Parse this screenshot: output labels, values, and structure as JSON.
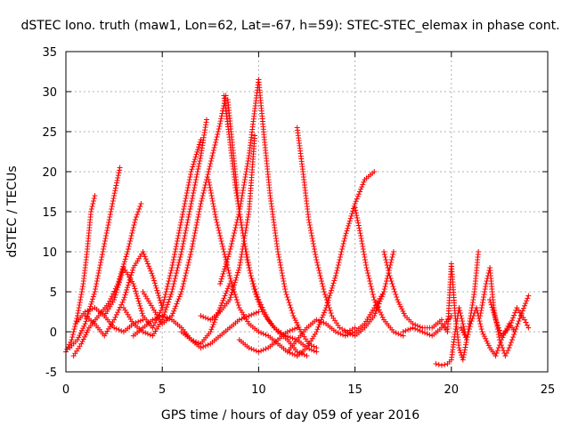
{
  "chart_data": {
    "type": "scatter",
    "title": "dSTEC Iono. truth (maw1, Lon=62, Lat=-67, h=59): STEC-STEC_elemax in phase cont.",
    "xlabel": "GPS time / hours of day 059 of year 2016",
    "ylabel": "dSTEC  / TECUs",
    "xlim": [
      0,
      25
    ],
    "ylim": [
      -5,
      35
    ],
    "x_ticks": [
      0,
      5,
      10,
      15,
      20,
      25
    ],
    "y_ticks": [
      -5,
      0,
      5,
      10,
      15,
      20,
      25,
      30,
      35
    ],
    "x_tick_labels": [
      "0",
      "5",
      "10",
      "15",
      "20",
      "25"
    ],
    "y_tick_labels": [
      "-5",
      "0",
      "5",
      "10",
      "15",
      "20",
      "25",
      "30",
      "35"
    ],
    "grid": true,
    "marker": "+",
    "color": "#ff0000",
    "series": [
      {
        "x": [
          0.0,
          0.3,
          0.6,
          0.9,
          1.1,
          1.3,
          1.5
        ],
        "y": [
          -2.5,
          -1.0,
          2.0,
          6.0,
          10.0,
          15.0,
          17.0
        ]
      },
      {
        "x": [
          0.2,
          0.6,
          1.0,
          1.5,
          2.0,
          2.5,
          2.8
        ],
        "y": [
          -2.0,
          -1.0,
          1.0,
          5.0,
          11.0,
          17.0,
          20.5
        ]
      },
      {
        "x": [
          0.4,
          0.8,
          1.2,
          1.7,
          2.2,
          2.7,
          3.2,
          3.6,
          3.9
        ],
        "y": [
          -3.0,
          -1.5,
          0.5,
          2.0,
          3.5,
          6.0,
          10.0,
          14.0,
          16.0
        ]
      },
      {
        "x": [
          0.5,
          1.0,
          1.5,
          2.0,
          2.5,
          3.0,
          3.5,
          4.0
        ],
        "y": [
          1.0,
          2.5,
          3.0,
          2.0,
          0.5,
          0.0,
          1.0,
          1.5
        ]
      },
      {
        "x": [
          1.0,
          1.5,
          2.0,
          2.5,
          3.0,
          3.5,
          4.0,
          4.5,
          5.0
        ],
        "y": [
          2.0,
          1.0,
          -0.5,
          1.5,
          4.0,
          8.0,
          10.0,
          7.0,
          3.0
        ]
      },
      {
        "x": [
          2.0,
          2.5,
          3.0,
          3.5,
          4.0,
          4.5,
          5.0,
          5.5,
          6.0,
          6.5,
          7.0
        ],
        "y": [
          2.0,
          4.0,
          8.0,
          6.0,
          2.0,
          0.5,
          3.0,
          8.0,
          14.0,
          20.0,
          24.0
        ]
      },
      {
        "x": [
          3.0,
          3.5,
          4.0,
          4.5,
          5.0,
          5.5,
          6.0,
          6.5,
          7.0,
          7.3
        ],
        "y": [
          3.0,
          1.0,
          0.0,
          -0.5,
          1.5,
          5.0,
          10.0,
          16.0,
          22.0,
          26.5
        ]
      },
      {
        "x": [
          3.5,
          4.0,
          4.5,
          5.0,
          5.5,
          6.0,
          6.5,
          7.0,
          7.5,
          8.0,
          8.5
        ],
        "y": [
          -0.5,
          0.5,
          1.5,
          2.0,
          1.5,
          0.5,
          -1.0,
          -1.5,
          0.0,
          3.0,
          6.0
        ]
      },
      {
        "x": [
          4.0,
          4.5,
          5.0,
          5.5,
          6.0,
          6.5,
          7.0,
          7.5,
          8.0,
          8.3
        ],
        "y": [
          5.0,
          3.0,
          1.0,
          2.0,
          5.0,
          10.0,
          16.0,
          21.0,
          26.0,
          29.5
        ]
      },
      {
        "x": [
          7.4,
          7.8,
          8.2,
          8.6,
          9.0,
          9.5,
          10.0,
          10.5,
          11.0,
          11.5,
          12.0
        ],
        "y": [
          19.0,
          14.0,
          10.0,
          6.0,
          3.0,
          1.0,
          0.0,
          -0.5,
          -1.5,
          -2.5,
          -3.0
        ]
      },
      {
        "x": [
          8.2,
          8.5,
          8.8,
          9.2,
          9.6,
          10.0,
          10.5,
          11.0,
          11.5,
          12.0,
          12.5
        ],
        "y": [
          29.5,
          24.0,
          18.0,
          12.0,
          7.0,
          4.0,
          1.5,
          0.0,
          -1.0,
          -2.5,
          -3.0
        ]
      },
      {
        "x": [
          8.4,
          8.7,
          9.0,
          9.4,
          9.8,
          10.2,
          10.8,
          11.4,
          12.0,
          12.5,
          13.0
        ],
        "y": [
          29.0,
          22.0,
          15.0,
          9.0,
          5.0,
          2.5,
          0.5,
          -0.5,
          -1.0,
          -2.0,
          -2.5
        ]
      },
      {
        "x": [
          6.0,
          6.5,
          7.0,
          7.5,
          8.0,
          8.5,
          9.0,
          9.5,
          10.0
        ],
        "y": [
          0.0,
          -1.0,
          -2.0,
          -1.5,
          -0.5,
          0.5,
          1.5,
          2.0,
          2.5
        ]
      },
      {
        "x": [
          7.0,
          7.5,
          8.0,
          8.5,
          9.0,
          9.5,
          9.8
        ],
        "y": [
          2.0,
          1.5,
          2.5,
          4.0,
          8.0,
          15.0,
          24.5
        ]
      },
      {
        "x": [
          8.0,
          8.5,
          9.0,
          9.5,
          10.0
        ],
        "y": [
          6.0,
          10.0,
          15.0,
          22.0,
          31.5
        ]
      },
      {
        "x": [
          10.0,
          10.3,
          10.6,
          11.0,
          11.4,
          11.8,
          12.2,
          12.6,
          13.0
        ],
        "y": [
          31.5,
          24.0,
          17.0,
          10.0,
          5.0,
          2.0,
          0.0,
          -1.5,
          -2.0
        ]
      },
      {
        "x": [
          9.0,
          9.5,
          10.0,
          10.5,
          11.0,
          11.5,
          12.0
        ],
        "y": [
          -1.0,
          -2.0,
          -2.5,
          -2.0,
          -1.0,
          0.0,
          0.5
        ]
      },
      {
        "x": [
          12.0,
          12.3,
          12.6,
          13.0,
          13.4,
          13.8,
          14.2,
          14.6,
          15.0
        ],
        "y": [
          25.5,
          20.0,
          14.0,
          9.0,
          5.0,
          2.0,
          0.5,
          0.0,
          0.5
        ]
      },
      {
        "x": [
          12.0,
          12.5,
          13.0,
          13.5,
          14.0,
          14.5,
          15.0,
          15.5,
          16.0
        ],
        "y": [
          -3.0,
          -2.0,
          0.0,
          3.0,
          7.0,
          12.0,
          16.0,
          19.0,
          20.0
        ]
      },
      {
        "x": [
          11.5,
          12.0,
          12.5,
          13.0,
          13.5,
          14.0,
          14.5,
          15.0,
          15.5,
          16.0,
          16.5
        ],
        "y": [
          -2.5,
          -1.0,
          0.5,
          1.5,
          1.0,
          0.0,
          -0.5,
          0.0,
          1.0,
          3.0,
          5.0
        ]
      },
      {
        "x": [
          15.0,
          15.3,
          15.6,
          16.0,
          16.5,
          17.0,
          17.5
        ],
        "y": [
          15.5,
          12.0,
          8.0,
          4.0,
          1.5,
          0.0,
          -0.5
        ]
      },
      {
        "x": [
          14.5,
          15.0,
          15.5,
          16.0,
          16.5,
          17.0
        ],
        "y": [
          0.0,
          -0.5,
          0.5,
          2.0,
          5.0,
          10.0
        ]
      },
      {
        "x": [
          16.5,
          16.8,
          17.2,
          17.6,
          18.0,
          18.5,
          19.0,
          19.5
        ],
        "y": [
          10.0,
          7.0,
          4.0,
          2.0,
          1.0,
          0.5,
          0.5,
          1.5
        ]
      },
      {
        "x": [
          17.5,
          18.0,
          18.5,
          19.0,
          19.5,
          20.0
        ],
        "y": [
          0.0,
          0.5,
          0.0,
          -0.5,
          0.5,
          2.0
        ]
      },
      {
        "x": [
          19.2,
          19.5,
          19.8,
          20.0,
          20.2,
          20.4,
          20.6,
          20.8
        ],
        "y": [
          -4.0,
          -4.2,
          -4.0,
          -3.5,
          0.0,
          3.0,
          1.0,
          -1.0
        ]
      },
      {
        "x": [
          19.5,
          19.8,
          20.0,
          20.2,
          20.4,
          20.6,
          20.8,
          21.0,
          21.2,
          21.4
        ],
        "y": [
          1.0,
          0.0,
          8.5,
          2.0,
          -2.0,
          -3.5,
          -1.0,
          2.0,
          5.0,
          10.0
        ]
      },
      {
        "x": [
          20.5,
          20.8,
          21.0,
          21.3,
          21.6,
          22.0,
          22.3,
          22.6,
          23.0,
          23.3
        ],
        "y": [
          0.5,
          -1.0,
          1.0,
          3.0,
          0.0,
          -2.0,
          -3.0,
          -1.0,
          1.0,
          0.0
        ]
      },
      {
        "x": [
          21.5,
          21.8,
          22.0,
          22.2,
          22.5,
          22.8,
          23.0,
          23.3,
          23.6,
          24.0
        ],
        "y": [
          2.0,
          6.0,
          8.0,
          3.0,
          -1.0,
          -3.0,
          -2.0,
          0.0,
          2.0,
          4.5
        ]
      },
      {
        "x": [
          22.0,
          22.3,
          22.6,
          23.0,
          23.4,
          23.8,
          24.0
        ],
        "y": [
          4.0,
          1.5,
          -0.5,
          0.5,
          3.0,
          1.5,
          0.5
        ]
      }
    ]
  }
}
